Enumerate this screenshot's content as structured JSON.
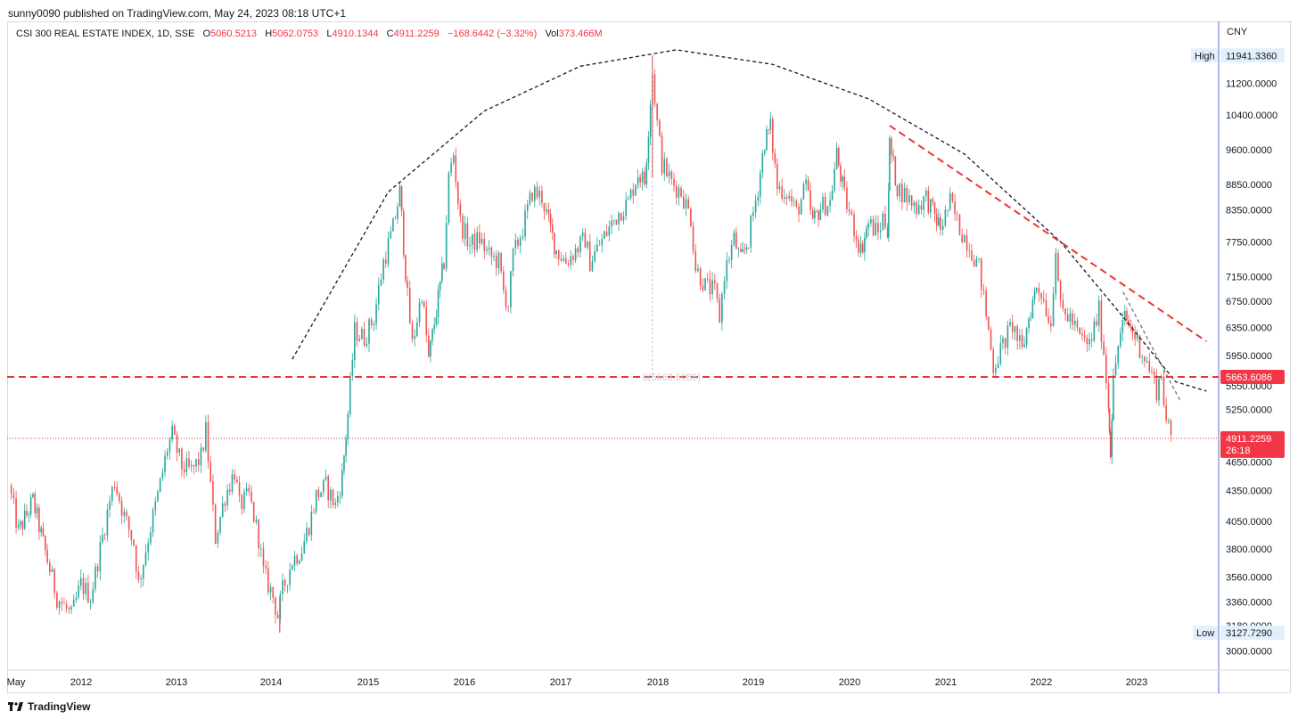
{
  "header": {
    "published": "sunny0090 published on TradingView.com, May 24, 2023 08:18 UTC+1"
  },
  "legend": {
    "symbol": "CSI 300 REAL ESTATE INDEX, 1D, SSE",
    "o_label": "O",
    "o_val": "5060.5213",
    "h_label": "H",
    "h_val": "5062.0753",
    "l_label": "L",
    "l_val": "4910.1344",
    "c_label": "C",
    "c_val": "4911.2259",
    "chg": "−168.6442 (−3.32%)",
    "vol_label": "Vol",
    "vol_val": "373.466M"
  },
  "axis": {
    "currency": "CNY"
  },
  "footer": {
    "brand": "TradingView"
  },
  "colors": {
    "up": "#26a69a",
    "down": "#ef5350",
    "accent": "#f23645",
    "axis_line": "#5b6fd4"
  },
  "chart_data": {
    "type": "candlestick",
    "title": "CSI 300 REAL ESTATE INDEX, 1D, SSE",
    "y_scale": "log",
    "ylim": [
      2880,
      12300
    ],
    "y_ticks": [
      11200,
      10400,
      9600,
      8850,
      8350,
      7750,
      7150,
      6750,
      6350,
      5950,
      5550,
      5250,
      4650,
      4350,
      4050,
      3800,
      3560,
      3360,
      3180,
      3000
    ],
    "y_tick_labels": [
      "11200.0000",
      "10400.0000",
      "9600.0000",
      "8850.0000",
      "8350.0000",
      "7750.0000",
      "7150.0000",
      "6750.0000",
      "6350.0000",
      "5950.0000",
      "5550.0000",
      "5250.0000",
      "4650.0000",
      "4350.0000",
      "4050.0000",
      "3800.0000",
      "3560.0000",
      "3360.0000",
      "3180.0000",
      "3000.0000"
    ],
    "x_labels": [
      "May",
      "2012",
      "2013",
      "2014",
      "2015",
      "2016",
      "2017",
      "2018",
      "2019",
      "2020",
      "2021",
      "2022",
      "2023"
    ],
    "x_range": [
      2011.35,
      2023.9
    ],
    "high": {
      "label": "High",
      "value": 11941.336,
      "text": "11941.3360"
    },
    "low": {
      "label": "Low",
      "value": 3127.729,
      "text": "3127.7290"
    },
    "last_price": {
      "value": 4911.2259,
      "text": "4911.2259",
      "countdown": "26:18"
    },
    "support_level": {
      "value": 5663.6086,
      "text": "5663.6086"
    },
    "center_note": "0(5663.6086)",
    "series": [
      {
        "values": [
          [
            2011.35,
            4400
          ],
          [
            2011.45,
            3950
          ],
          [
            2011.6,
            4250
          ],
          [
            2011.75,
            3700
          ],
          [
            2011.85,
            3400
          ],
          [
            2011.95,
            3300
          ],
          [
            2012.0,
            3250
          ],
          [
            2012.1,
            3500
          ],
          [
            2012.2,
            3400
          ],
          [
            2012.3,
            3800
          ],
          [
            2012.4,
            4250
          ],
          [
            2012.45,
            4450
          ],
          [
            2012.55,
            4100
          ],
          [
            2012.65,
            3850
          ],
          [
            2012.7,
            3500
          ],
          [
            2012.8,
            3900
          ],
          [
            2012.9,
            4300
          ],
          [
            2013.0,
            4800
          ],
          [
            2013.05,
            4950
          ],
          [
            2013.15,
            4600
          ],
          [
            2013.25,
            4550
          ],
          [
            2013.35,
            4700
          ],
          [
            2013.4,
            5000
          ],
          [
            2013.45,
            4400
          ],
          [
            2013.5,
            3900
          ],
          [
            2013.6,
            4300
          ],
          [
            2013.7,
            4550
          ],
          [
            2013.75,
            4200
          ],
          [
            2013.85,
            4300
          ],
          [
            2013.95,
            3900
          ],
          [
            2014.0,
            3600
          ],
          [
            2014.1,
            3400
          ],
          [
            2014.15,
            3250
          ],
          [
            2014.2,
            3450
          ],
          [
            2014.3,
            3700
          ],
          [
            2014.4,
            3800
          ],
          [
            2014.5,
            4100
          ],
          [
            2014.55,
            4300
          ],
          [
            2014.65,
            4400
          ],
          [
            2014.75,
            4200
          ],
          [
            2014.82,
            4500
          ],
          [
            2014.88,
            5200
          ],
          [
            2014.95,
            6300
          ],
          [
            2015.05,
            6200
          ],
          [
            2015.15,
            6500
          ],
          [
            2015.25,
            7400
          ],
          [
            2015.35,
            8000
          ],
          [
            2015.42,
            8700
          ],
          [
            2015.5,
            6800
          ],
          [
            2015.55,
            6100
          ],
          [
            2015.65,
            6900
          ],
          [
            2015.72,
            5900
          ],
          [
            2015.8,
            6600
          ],
          [
            2015.88,
            7400
          ],
          [
            2015.93,
            9000
          ],
          [
            2015.98,
            9500
          ],
          [
            2016.05,
            8100
          ],
          [
            2016.15,
            7700
          ],
          [
            2016.25,
            7800
          ],
          [
            2016.35,
            7500
          ],
          [
            2016.45,
            7400
          ],
          [
            2016.5,
            6900
          ],
          [
            2016.55,
            6700
          ],
          [
            2016.6,
            7500
          ],
          [
            2016.7,
            8000
          ],
          [
            2016.8,
            8700
          ],
          [
            2016.9,
            8600
          ],
          [
            2016.97,
            8100
          ],
          [
            2017.05,
            7600
          ],
          [
            2017.15,
            7400
          ],
          [
            2017.25,
            7600
          ],
          [
            2017.35,
            7800
          ],
          [
            2017.4,
            7400
          ],
          [
            2017.5,
            7700
          ],
          [
            2017.6,
            8000
          ],
          [
            2017.7,
            8300
          ],
          [
            2017.8,
            8500
          ],
          [
            2017.9,
            9100
          ],
          [
            2017.97,
            8900
          ],
          [
            2018.05,
            11500
          ],
          [
            2018.1,
            10200
          ],
          [
            2018.15,
            9300
          ],
          [
            2018.25,
            8900
          ],
          [
            2018.35,
            8700
          ],
          [
            2018.45,
            8200
          ],
          [
            2018.5,
            7300
          ],
          [
            2018.6,
            7000
          ],
          [
            2018.7,
            6900
          ],
          [
            2018.75,
            6500
          ],
          [
            2018.8,
            7200
          ],
          [
            2018.9,
            7800
          ],
          [
            2018.97,
            7400
          ],
          [
            2019.05,
            7800
          ],
          [
            2019.15,
            8800
          ],
          [
            2019.22,
            9800
          ],
          [
            2019.28,
            10100
          ],
          [
            2019.35,
            8800
          ],
          [
            2019.45,
            8700
          ],
          [
            2019.55,
            8300
          ],
          [
            2019.65,
            8800
          ],
          [
            2019.72,
            8100
          ],
          [
            2019.8,
            8400
          ],
          [
            2019.9,
            8500
          ],
          [
            2019.97,
            9500
          ],
          [
            2020.05,
            8600
          ],
          [
            2020.15,
            8000
          ],
          [
            2020.22,
            7600
          ],
          [
            2020.3,
            8100
          ],
          [
            2020.4,
            7900
          ],
          [
            2020.45,
            8200
          ],
          [
            2020.5,
            8000
          ],
          [
            2020.52,
            9700
          ],
          [
            2020.6,
            8800
          ],
          [
            2020.7,
            8600
          ],
          [
            2020.8,
            8400
          ],
          [
            2020.9,
            8600
          ],
          [
            2020.97,
            8300
          ],
          [
            2021.05,
            8000
          ],
          [
            2021.15,
            8500
          ],
          [
            2021.25,
            8000
          ],
          [
            2021.35,
            7700
          ],
          [
            2021.45,
            7300
          ],
          [
            2021.5,
            6800
          ],
          [
            2021.55,
            6300
          ],
          [
            2021.6,
            5800
          ],
          [
            2021.7,
            6100
          ],
          [
            2021.8,
            6400
          ],
          [
            2021.9,
            6000
          ],
          [
            2021.97,
            6500
          ],
          [
            2022.05,
            7000
          ],
          [
            2022.1,
            6900
          ],
          [
            2022.2,
            6400
          ],
          [
            2022.25,
            7700
          ],
          [
            2022.3,
            6600
          ],
          [
            2022.4,
            6500
          ],
          [
            2022.5,
            6200
          ],
          [
            2022.6,
            6100
          ],
          [
            2022.7,
            6600
          ],
          [
            2022.75,
            6000
          ],
          [
            2022.8,
            5300
          ],
          [
            2022.82,
            4800
          ],
          [
            2022.85,
            5600
          ],
          [
            2022.9,
            6100
          ],
          [
            2022.97,
            6500
          ],
          [
            2023.05,
            6300
          ],
          [
            2023.15,
            6000
          ],
          [
            2023.25,
            5700
          ],
          [
            2023.3,
            5500
          ],
          [
            2023.35,
            5700
          ],
          [
            2023.4,
            5100
          ],
          [
            2023.45,
            4911
          ]
        ]
      }
    ],
    "overlays": [
      {
        "type": "arc",
        "style": "dashed",
        "color": "#131722",
        "points": [
          [
            2014.3,
            5900
          ],
          [
            2015.3,
            8700
          ],
          [
            2016.3,
            10500
          ],
          [
            2017.3,
            11650
          ],
          [
            2018.3,
            12100
          ],
          [
            2019.3,
            11700
          ],
          [
            2020.3,
            10800
          ],
          [
            2021.3,
            9500
          ],
          [
            2022.3,
            7750
          ],
          [
            2022.9,
            6600
          ],
          [
            2023.5,
            5600
          ],
          [
            2023.82,
            5480
          ]
        ]
      },
      {
        "type": "line",
        "style": "dashed",
        "color": "#e53935",
        "points": [
          [
            2020.52,
            10150
          ],
          [
            2023.82,
            6150
          ]
        ]
      },
      {
        "type": "line",
        "style": "dashed",
        "color": "#757575",
        "points": [
          [
            2022.95,
            6900
          ],
          [
            2023.55,
            5350
          ]
        ]
      },
      {
        "type": "hline",
        "style": "dashed",
        "color": "#e53935",
        "value": 5663.6086
      },
      {
        "type": "hline",
        "style": "dotted",
        "color": "#e53935",
        "value": 4911.2259
      },
      {
        "type": "vline",
        "style": "dotted",
        "color": "#b0b3bd",
        "x": 2018.05
      }
    ]
  }
}
